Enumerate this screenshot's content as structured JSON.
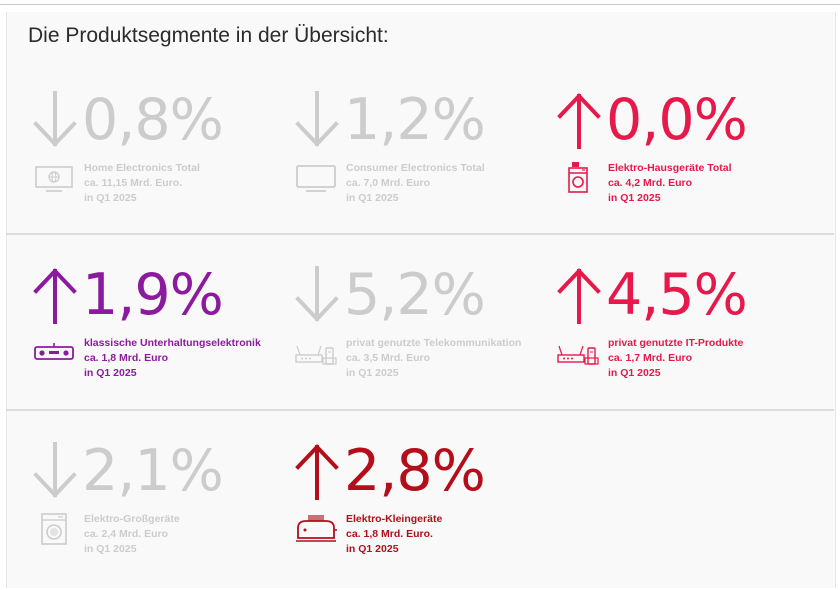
{
  "title": "Die Produktsegmente in der Übersicht:",
  "colors": {
    "gray": "#cccccc",
    "red": "#e6194b",
    "purple": "#8c1a9e",
    "darkred": "#b30e1a"
  },
  "segments": [
    {
      "direction": "down",
      "value": "0,8%",
      "name": "Home Electronics Total",
      "amount": "ca. 11,15 Mrd. Euro.",
      "period": "in Q1 2025",
      "color": "gray",
      "icon": "monitor-globe-icon"
    },
    {
      "direction": "down",
      "value": "1,2%",
      "name": "Consumer Electronics Total",
      "amount": "ca. 7,0 Mrd. Euro",
      "period": "in Q1 2025",
      "color": "gray",
      "icon": "tv-icon"
    },
    {
      "direction": "up",
      "value": "0,0%",
      "name": "Elektro-Hausgeräte Total",
      "amount": "ca. 4,2 Mrd. Euro",
      "period": "in Q1 2025",
      "color": "red",
      "icon": "appliance-icon"
    },
    {
      "direction": "up",
      "value": "1,9%",
      "name": "klassische Unterhaltungselektronik",
      "amount": "ca. 1,8 Mrd. Euro",
      "period": "in Q1 2025",
      "color": "purple",
      "icon": "soundbar-icon"
    },
    {
      "direction": "down",
      "value": "5,2%",
      "name": "privat genutzte Telekommunikation",
      "amount": "ca. 3,5 Mrd. Euro",
      "period": "in Q1 2025",
      "color": "gray",
      "icon": "router-phone-icon"
    },
    {
      "direction": "up",
      "value": "4,5%",
      "name": "privat genutzte IT-Produkte",
      "amount": "ca. 1,7 Mrd. Euro",
      "period": "in Q1 2025",
      "color": "red",
      "icon": "router-phone-icon"
    },
    {
      "direction": "down",
      "value": "2,1%",
      "name": "Elektro-Großgeräte",
      "amount": "ca. 2,4 Mrd. Euro",
      "period": "in Q1 2025",
      "color": "gray",
      "icon": "washing-machine-icon"
    },
    {
      "direction": "up",
      "value": "2,8%",
      "name": "Elektro-Kleingeräte",
      "amount": "ca. 1,8 Mrd. Euro.",
      "period": "in Q1 2025",
      "color": "darkred",
      "icon": "toaster-icon"
    }
  ]
}
